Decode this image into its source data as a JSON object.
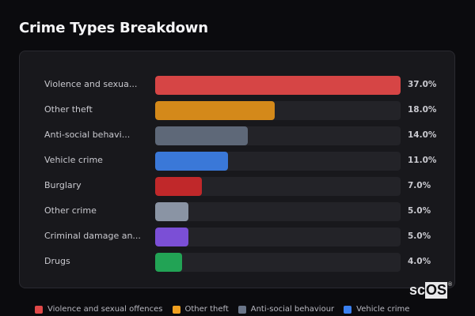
{
  "title": "Crime Types Breakdown",
  "chart_data": {
    "type": "bar",
    "orientation": "horizontal",
    "title": "Crime Types Breakdown",
    "categories": [
      "Violence and sexual offences",
      "Other theft",
      "Anti-social behaviour",
      "Vehicle crime",
      "Burglary",
      "Other crime",
      "Criminal damage and arson",
      "Drugs"
    ],
    "display_labels": [
      "Violence and sexua...",
      "Other theft",
      "Anti-social behavi...",
      "Vehicle crime",
      "Burglary",
      "Other crime",
      "Criminal damage an...",
      "Drugs"
    ],
    "values": [
      37.0,
      18.0,
      14.0,
      11.0,
      7.0,
      5.0,
      5.0,
      4.0
    ],
    "value_labels": [
      "37.0%",
      "18.0%",
      "14.0%",
      "11.0%",
      "7.0%",
      "5.0%",
      "5.0%",
      "4.0%"
    ],
    "colors": [
      "#d64545",
      "#d4891a",
      "#5e6878",
      "#3a78d8",
      "#c0282a",
      "#8a94a4",
      "#7b4fd6",
      "#22a355"
    ],
    "unit": "%",
    "scale": "relative to max",
    "legend": [
      {
        "label": "Violence and sexual offences",
        "color": "#e04848"
      },
      {
        "label": "Other theft",
        "color": "#f0a020"
      },
      {
        "label": "Anti-social behaviour",
        "color": "#6a7588"
      },
      {
        "label": "Vehicle crime",
        "color": "#3a80f0"
      }
    ],
    "legend_position": "bottom"
  },
  "watermark": {
    "prefix": "sc",
    "boxed": "OS",
    "mark": "®"
  }
}
